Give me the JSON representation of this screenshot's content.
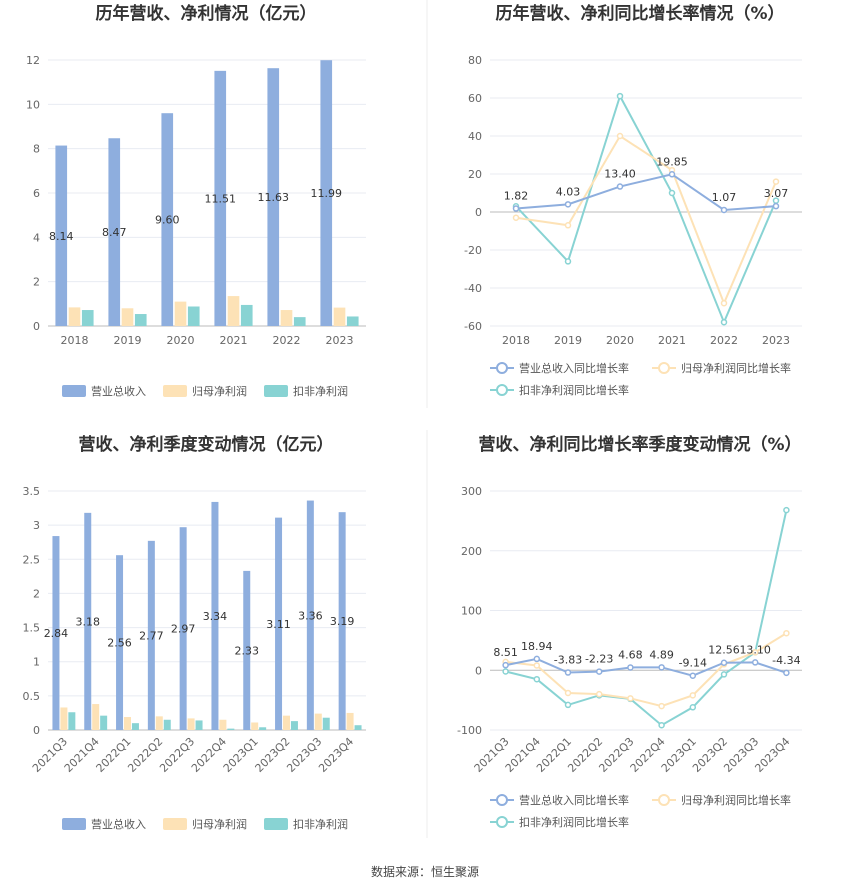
{
  "source": "数据来源：恒生聚源",
  "chart_data": [
    {
      "type": "bar",
      "title": "历年营收、净利情况（亿元）",
      "categories": [
        "2018",
        "2019",
        "2020",
        "2021",
        "2022",
        "2023"
      ],
      "ylim": [
        0,
        12
      ],
      "yticks": [
        0,
        2,
        4,
        6,
        8,
        10,
        12
      ],
      "series": [
        {
          "name": "营业总收入",
          "values": [
            8.14,
            8.47,
            9.6,
            11.51,
            11.63,
            11.99
          ],
          "color": "#8eaede",
          "labels": [
            "8.14",
            "8.47",
            "9.60",
            "11.51",
            "11.63",
            "11.99"
          ]
        },
        {
          "name": "归母净利润",
          "values": [
            0.84,
            0.8,
            1.1,
            1.35,
            0.72,
            0.83
          ],
          "color": "#fde2b6"
        },
        {
          "name": "扣非净利润",
          "values": [
            0.72,
            0.54,
            0.88,
            0.95,
            0.4,
            0.43
          ],
          "color": "#88d3d3"
        }
      ]
    },
    {
      "type": "line",
      "title": "历年营收、净利同比增长率情况（%）",
      "categories": [
        "2018",
        "2019",
        "2020",
        "2021",
        "2022",
        "2023"
      ],
      "ylim": [
        -60,
        80
      ],
      "yticks": [
        -60,
        -40,
        -20,
        0,
        20,
        40,
        60,
        80
      ],
      "series": [
        {
          "name": "营业总收入同比增长率",
          "values": [
            1.82,
            4.03,
            13.4,
            19.85,
            1.07,
            3.07
          ],
          "color": "#8eaede",
          "labels": [
            "1.82",
            "4.03",
            "13.40",
            "19.85",
            "1.07",
            "3.07"
          ]
        },
        {
          "name": "归母净利润同比增长率",
          "values": [
            -3,
            -7,
            40,
            22,
            -48,
            16
          ],
          "color": "#fde2b6"
        },
        {
          "name": "扣非净利润同比增长率",
          "values": [
            3,
            -26,
            61,
            10,
            -58,
            6
          ],
          "color": "#88d3d3"
        }
      ]
    },
    {
      "type": "bar",
      "title": "营收、净利季度变动情况（亿元）",
      "categories": [
        "2021Q3",
        "2021Q4",
        "2022Q1",
        "2022Q2",
        "2022Q3",
        "2022Q4",
        "2023Q1",
        "2023Q2",
        "2023Q3",
        "2023Q4"
      ],
      "ylim": [
        0,
        3.5
      ],
      "yticks": [
        0,
        0.5,
        1,
        1.5,
        2,
        2.5,
        3,
        3.5
      ],
      "series": [
        {
          "name": "营业总收入",
          "values": [
            2.84,
            3.18,
            2.56,
            2.77,
            2.97,
            3.34,
            2.33,
            3.11,
            3.36,
            3.19
          ],
          "color": "#8eaede",
          "labels": [
            "2.84",
            "3.18",
            "2.56",
            "2.77",
            "2.97",
            "3.34",
            "2.33",
            "3.11",
            "3.36",
            "3.19"
          ]
        },
        {
          "name": "归母净利润",
          "values": [
            0.33,
            0.38,
            0.19,
            0.2,
            0.17,
            0.15,
            0.11,
            0.21,
            0.24,
            0.25
          ],
          "color": "#fde2b6"
        },
        {
          "name": "扣非净利润",
          "values": [
            0.26,
            0.21,
            0.1,
            0.15,
            0.14,
            0.02,
            0.04,
            0.13,
            0.18,
            0.07
          ],
          "color": "#88d3d3"
        }
      ]
    },
    {
      "type": "line",
      "title": "营收、净利同比增长率季度变动情况（%）",
      "categories": [
        "2021Q3",
        "2021Q4",
        "2022Q1",
        "2022Q2",
        "2022Q3",
        "2022Q4",
        "2023Q1",
        "2023Q2",
        "2023Q3",
        "2023Q4"
      ],
      "ylim": [
        -100,
        300
      ],
      "yticks": [
        -100,
        0,
        100,
        200,
        300
      ],
      "series": [
        {
          "name": "营业总收入同比增长率",
          "values": [
            8.51,
            18.94,
            -3.83,
            -2.23,
            4.68,
            4.89,
            -9.14,
            12.56,
            13.1,
            -4.34
          ],
          "color": "#8eaede",
          "labels": [
            "8.51",
            "18.94",
            "-3.83",
            "-2.23",
            "4.68",
            "4.89",
            "-9.14",
            "12.56",
            "13.10",
            "-4.34"
          ]
        },
        {
          "name": "归母净利润同比增长率",
          "values": [
            14,
            8,
            -38,
            -40,
            -47,
            -60,
            -42,
            10,
            30,
            62
          ],
          "color": "#fde2b6"
        },
        {
          "name": "扣非净利润同比增长率",
          "values": [
            -2,
            -15,
            -58,
            -42,
            -48,
            -92,
            -62,
            -7,
            30,
            268
          ],
          "color": "#88d3d3"
        }
      ]
    }
  ]
}
